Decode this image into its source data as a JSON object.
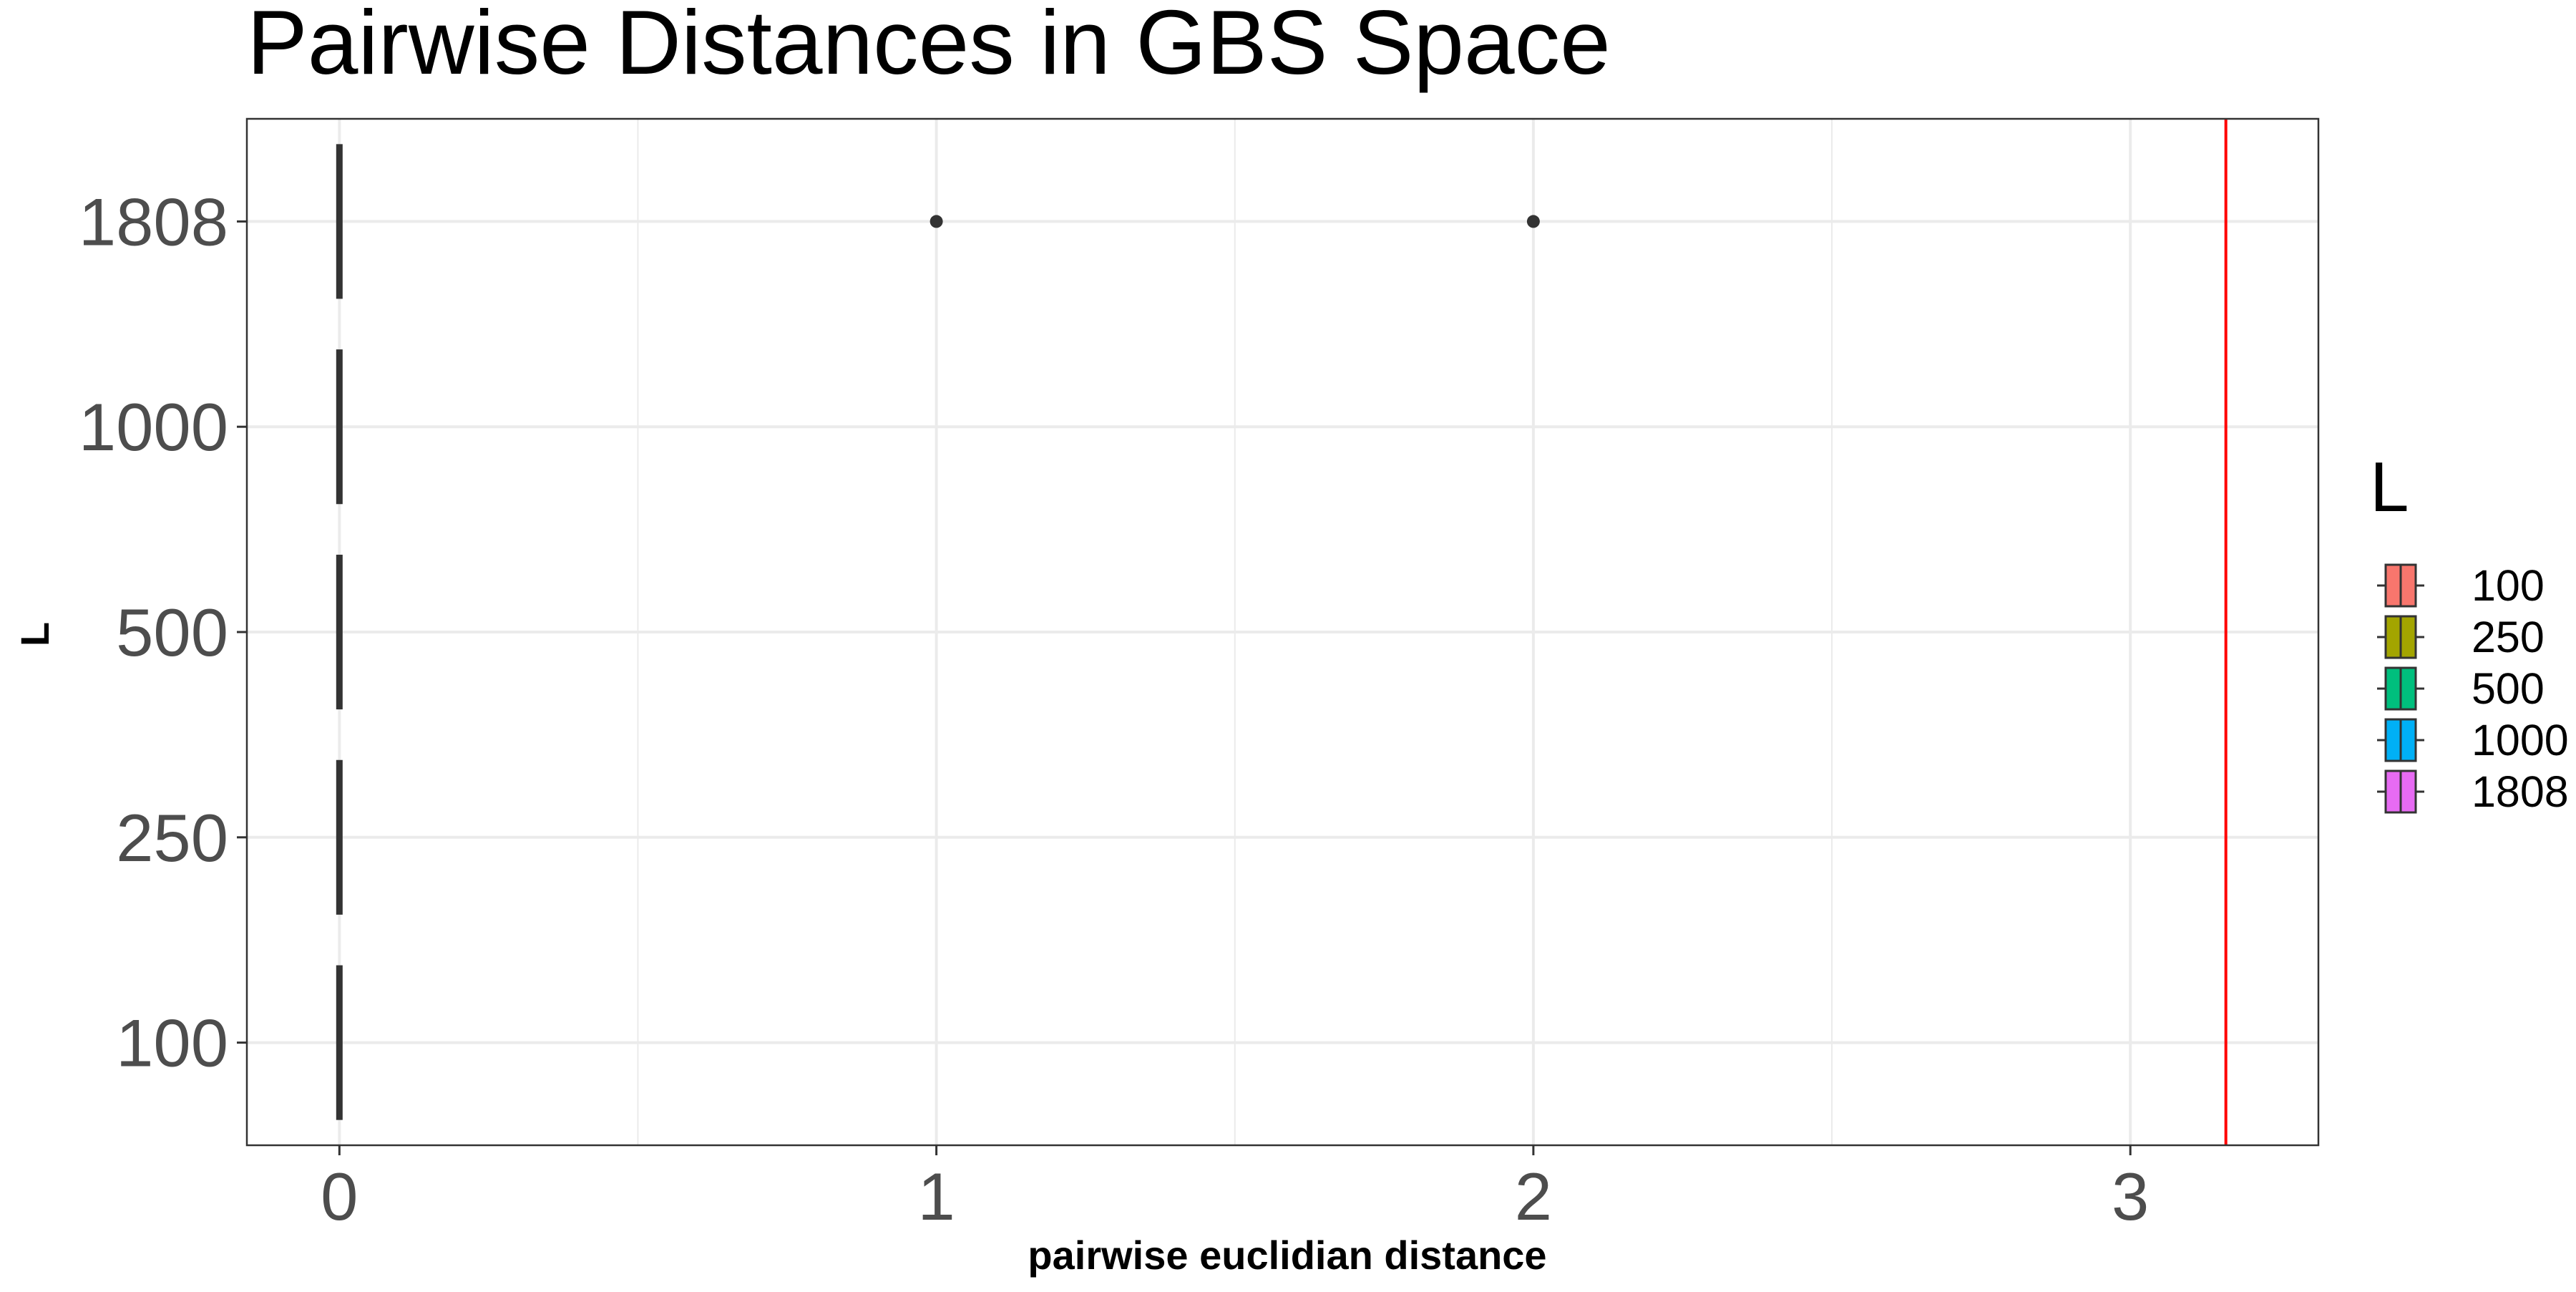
{
  "chart_data": {
    "type": "boxplot",
    "title": "Pairwise Distances in GBS Space",
    "xlabel": "pairwise euclidian distance",
    "ylabel": "L",
    "orientation": "horizontal",
    "xlim": [
      -0.155,
      3.315
    ],
    "x_ticks": [
      0,
      1,
      2,
      3
    ],
    "x_minor_ticks": [
      0.5,
      1.5,
      2.5
    ],
    "categories": [
      "100",
      "250",
      "500",
      "1000",
      "1808"
    ],
    "series": [
      {
        "category": "100",
        "min": 0,
        "q1": 0,
        "median": 0,
        "q3": 0,
        "max": 0,
        "outliers": []
      },
      {
        "category": "250",
        "min": 0,
        "q1": 0,
        "median": 0,
        "q3": 0,
        "max": 0,
        "outliers": []
      },
      {
        "category": "500",
        "min": 0,
        "q1": 0,
        "median": 0,
        "q3": 0,
        "max": 0,
        "outliers": []
      },
      {
        "category": "1000",
        "min": 0,
        "q1": 0,
        "median": 0,
        "q3": 0,
        "max": 0,
        "outliers": []
      },
      {
        "category": "1808",
        "min": 0,
        "q1": 0,
        "median": 0,
        "q3": 0,
        "max": 0,
        "outliers": [
          1,
          2
        ]
      }
    ],
    "reference_line": {
      "x": 3.16,
      "color": "#ff0000"
    },
    "legend": {
      "title": "L",
      "position": "right",
      "entries": [
        {
          "label": "100",
          "color": "#F8766D"
        },
        {
          "label": "250",
          "color": "#A3A500"
        },
        {
          "label": "500",
          "color": "#00BF7D"
        },
        {
          "label": "1000",
          "color": "#00B0F6"
        },
        {
          "label": "1808",
          "color": "#E76BF3"
        }
      ]
    },
    "grid": true,
    "theme": "bw"
  }
}
